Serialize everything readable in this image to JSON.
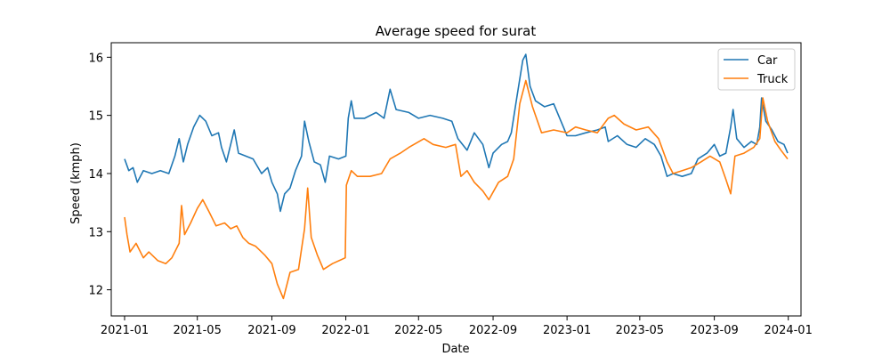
{
  "chart_data": {
    "type": "line",
    "title": "Average speed for surat",
    "xlabel": "Date",
    "ylabel": "Speed (kmph)",
    "x_ticks": [
      "2021-01",
      "2021-05",
      "2021-09",
      "2022-01",
      "2022-05",
      "2022-09",
      "2023-01",
      "2023-05",
      "2023-09",
      "2024-01"
    ],
    "y_ticks": [
      "12",
      "13",
      "14",
      "15",
      "16"
    ],
    "ylim": [
      11.55,
      16.25
    ],
    "xlim": [
      "2020-12-10",
      "2024-01-22"
    ],
    "grid": false,
    "legend_position": "top-right",
    "series": [
      {
        "name": "Car",
        "color": "#1f77b4",
        "points": [
          [
            "2021-01-01",
            14.25
          ],
          [
            "2021-01-08",
            14.05
          ],
          [
            "2021-01-15",
            14.1
          ],
          [
            "2021-01-22",
            13.85
          ],
          [
            "2021-02-01",
            14.05
          ],
          [
            "2021-02-15",
            14.0
          ],
          [
            "2021-03-01",
            14.05
          ],
          [
            "2021-03-15",
            14.0
          ],
          [
            "2021-03-25",
            14.3
          ],
          [
            "2021-04-01",
            14.6
          ],
          [
            "2021-04-08",
            14.2
          ],
          [
            "2021-04-15",
            14.5
          ],
          [
            "2021-04-25",
            14.8
          ],
          [
            "2021-05-05",
            15.0
          ],
          [
            "2021-05-15",
            14.9
          ],
          [
            "2021-05-25",
            14.65
          ],
          [
            "2021-06-05",
            14.7
          ],
          [
            "2021-06-10",
            14.45
          ],
          [
            "2021-06-18",
            14.2
          ],
          [
            "2021-06-25",
            14.5
          ],
          [
            "2021-07-01",
            14.75
          ],
          [
            "2021-07-08",
            14.35
          ],
          [
            "2021-07-20",
            14.3
          ],
          [
            "2021-08-01",
            14.25
          ],
          [
            "2021-08-15",
            14.0
          ],
          [
            "2021-08-25",
            14.1
          ],
          [
            "2021-09-01",
            13.85
          ],
          [
            "2021-09-10",
            13.65
          ],
          [
            "2021-09-15",
            13.35
          ],
          [
            "2021-09-22",
            13.65
          ],
          [
            "2021-10-01",
            13.75
          ],
          [
            "2021-10-10",
            14.05
          ],
          [
            "2021-10-20",
            14.3
          ],
          [
            "2021-10-25",
            14.9
          ],
          [
            "2021-11-01",
            14.55
          ],
          [
            "2021-11-10",
            14.2
          ],
          [
            "2021-11-20",
            14.15
          ],
          [
            "2021-11-28",
            13.85
          ],
          [
            "2021-12-05",
            14.3
          ],
          [
            "2021-12-20",
            14.25
          ],
          [
            "2022-01-01",
            14.3
          ],
          [
            "2022-01-05",
            14.95
          ],
          [
            "2022-01-10",
            15.25
          ],
          [
            "2022-01-15",
            14.95
          ],
          [
            "2022-02-01",
            14.95
          ],
          [
            "2022-02-20",
            15.05
          ],
          [
            "2022-03-05",
            14.95
          ],
          [
            "2022-03-15",
            15.45
          ],
          [
            "2022-03-25",
            15.1
          ],
          [
            "2022-04-15",
            15.05
          ],
          [
            "2022-05-01",
            14.95
          ],
          [
            "2022-05-20",
            15.0
          ],
          [
            "2022-06-10",
            14.95
          ],
          [
            "2022-06-25",
            14.9
          ],
          [
            "2022-07-05",
            14.6
          ],
          [
            "2022-07-20",
            14.4
          ],
          [
            "2022-08-01",
            14.7
          ],
          [
            "2022-08-15",
            14.5
          ],
          [
            "2022-08-25",
            14.1
          ],
          [
            "2022-09-01",
            14.35
          ],
          [
            "2022-09-15",
            14.5
          ],
          [
            "2022-09-25",
            14.55
          ],
          [
            "2022-10-01",
            14.7
          ],
          [
            "2022-10-10",
            15.3
          ],
          [
            "2022-10-20",
            15.95
          ],
          [
            "2022-10-25",
            16.05
          ],
          [
            "2022-11-01",
            15.5
          ],
          [
            "2022-11-10",
            15.25
          ],
          [
            "2022-11-25",
            15.15
          ],
          [
            "2022-12-10",
            15.2
          ],
          [
            "2023-01-01",
            14.65
          ],
          [
            "2023-01-15",
            14.65
          ],
          [
            "2023-02-01",
            14.7
          ],
          [
            "2023-02-20",
            14.75
          ],
          [
            "2023-03-05",
            14.8
          ],
          [
            "2023-03-10",
            14.55
          ],
          [
            "2023-03-25",
            14.65
          ],
          [
            "2023-04-10",
            14.5
          ],
          [
            "2023-04-25",
            14.45
          ],
          [
            "2023-05-10",
            14.6
          ],
          [
            "2023-05-25",
            14.5
          ],
          [
            "2023-06-05",
            14.3
          ],
          [
            "2023-06-15",
            13.95
          ],
          [
            "2023-06-25",
            14.0
          ],
          [
            "2023-07-10",
            13.95
          ],
          [
            "2023-07-25",
            14.0
          ],
          [
            "2023-08-05",
            14.25
          ],
          [
            "2023-08-20",
            14.35
          ],
          [
            "2023-09-01",
            14.5
          ],
          [
            "2023-09-10",
            14.3
          ],
          [
            "2023-09-20",
            14.35
          ],
          [
            "2023-09-28",
            14.8
          ],
          [
            "2023-10-02",
            15.1
          ],
          [
            "2023-10-08",
            14.6
          ],
          [
            "2023-10-20",
            14.45
          ],
          [
            "2023-11-01",
            14.55
          ],
          [
            "2023-11-10",
            14.5
          ],
          [
            "2023-11-15",
            14.8
          ],
          [
            "2023-11-18",
            15.3
          ],
          [
            "2023-11-25",
            14.9
          ],
          [
            "2023-12-05",
            14.75
          ],
          [
            "2023-12-15",
            14.55
          ],
          [
            "2023-12-25",
            14.5
          ],
          [
            "2023-12-31",
            14.35
          ]
        ]
      },
      {
        "name": "Truck",
        "color": "#ff7f0e",
        "points": [
          [
            "2021-01-01",
            13.25
          ],
          [
            "2021-01-05",
            12.95
          ],
          [
            "2021-01-10",
            12.65
          ],
          [
            "2021-01-20",
            12.8
          ],
          [
            "2021-02-01",
            12.55
          ],
          [
            "2021-02-10",
            12.65
          ],
          [
            "2021-02-25",
            12.5
          ],
          [
            "2021-03-10",
            12.45
          ],
          [
            "2021-03-20",
            12.55
          ],
          [
            "2021-04-01",
            12.8
          ],
          [
            "2021-04-05",
            13.45
          ],
          [
            "2021-04-10",
            12.95
          ],
          [
            "2021-04-20",
            13.15
          ],
          [
            "2021-05-01",
            13.4
          ],
          [
            "2021-05-10",
            13.55
          ],
          [
            "2021-05-20",
            13.35
          ],
          [
            "2021-06-01",
            13.1
          ],
          [
            "2021-06-15",
            13.15
          ],
          [
            "2021-06-25",
            13.05
          ],
          [
            "2021-07-05",
            13.1
          ],
          [
            "2021-07-15",
            12.9
          ],
          [
            "2021-07-25",
            12.8
          ],
          [
            "2021-08-05",
            12.75
          ],
          [
            "2021-08-20",
            12.6
          ],
          [
            "2021-09-01",
            12.45
          ],
          [
            "2021-09-10",
            12.1
          ],
          [
            "2021-09-20",
            11.85
          ],
          [
            "2021-10-01",
            12.3
          ],
          [
            "2021-10-15",
            12.35
          ],
          [
            "2021-10-25",
            13.05
          ],
          [
            "2021-10-30",
            13.75
          ],
          [
            "2021-11-05",
            12.9
          ],
          [
            "2021-11-15",
            12.6
          ],
          [
            "2021-11-25",
            12.35
          ],
          [
            "2021-12-10",
            12.45
          ],
          [
            "2021-12-31",
            12.55
          ],
          [
            "2022-01-02",
            13.8
          ],
          [
            "2022-01-10",
            14.05
          ],
          [
            "2022-01-20",
            13.95
          ],
          [
            "2022-02-10",
            13.95
          ],
          [
            "2022-03-01",
            14.0
          ],
          [
            "2022-03-15",
            14.25
          ],
          [
            "2022-04-01",
            14.35
          ],
          [
            "2022-04-15",
            14.45
          ],
          [
            "2022-05-10",
            14.6
          ],
          [
            "2022-05-25",
            14.5
          ],
          [
            "2022-06-15",
            14.45
          ],
          [
            "2022-07-01",
            14.5
          ],
          [
            "2022-07-10",
            13.95
          ],
          [
            "2022-07-20",
            14.05
          ],
          [
            "2022-08-01",
            13.85
          ],
          [
            "2022-08-15",
            13.7
          ],
          [
            "2022-08-25",
            13.55
          ],
          [
            "2022-09-10",
            13.85
          ],
          [
            "2022-09-25",
            13.95
          ],
          [
            "2022-10-05",
            14.25
          ],
          [
            "2022-10-15",
            15.2
          ],
          [
            "2022-10-25",
            15.6
          ],
          [
            "2022-11-05",
            15.15
          ],
          [
            "2022-11-20",
            14.7
          ],
          [
            "2022-12-10",
            14.75
          ],
          [
            "2023-01-01",
            14.7
          ],
          [
            "2023-01-15",
            14.8
          ],
          [
            "2023-02-01",
            14.75
          ],
          [
            "2023-02-20",
            14.7
          ],
          [
            "2023-03-10",
            14.95
          ],
          [
            "2023-03-20",
            15.0
          ],
          [
            "2023-04-05",
            14.85
          ],
          [
            "2023-04-25",
            14.75
          ],
          [
            "2023-05-15",
            14.8
          ],
          [
            "2023-06-01",
            14.6
          ],
          [
            "2023-06-15",
            14.2
          ],
          [
            "2023-06-25",
            14.0
          ],
          [
            "2023-07-10",
            14.05
          ],
          [
            "2023-07-25",
            14.1
          ],
          [
            "2023-08-10",
            14.2
          ],
          [
            "2023-08-25",
            14.3
          ],
          [
            "2023-09-10",
            14.2
          ],
          [
            "2023-09-20",
            13.9
          ],
          [
            "2023-09-28",
            13.65
          ],
          [
            "2023-10-05",
            14.3
          ],
          [
            "2023-10-20",
            14.35
          ],
          [
            "2023-11-05",
            14.45
          ],
          [
            "2023-11-15",
            14.6
          ],
          [
            "2023-11-20",
            15.3
          ],
          [
            "2023-11-28",
            14.9
          ],
          [
            "2023-12-10",
            14.55
          ],
          [
            "2023-12-20",
            14.4
          ],
          [
            "2023-12-31",
            14.25
          ]
        ]
      }
    ]
  }
}
